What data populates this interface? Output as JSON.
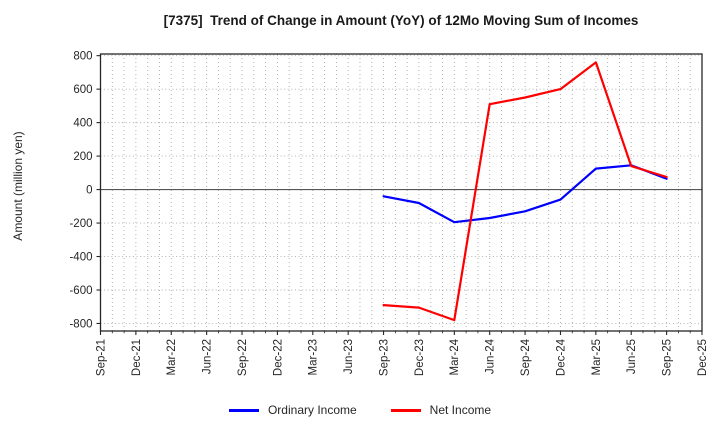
{
  "title": "[7375]  Trend of Change in Amount (YoY) of 12Mo Moving Sum of Incomes",
  "chart_data": {
    "type": "line",
    "title": "[7375]  Trend of Change in Amount (YoY) of 12Mo Moving Sum of Incomes",
    "ylabel": "Amount (million yen)",
    "xlabel": "",
    "x_categories": [
      "Sep-21",
      "Dec-21",
      "Mar-22",
      "Jun-22",
      "Sep-22",
      "Dec-22",
      "Mar-23",
      "Jun-23",
      "Sep-23",
      "Dec-23",
      "Mar-24",
      "Jun-24",
      "Sep-24",
      "Dec-24",
      "Mar-25",
      "Jun-25",
      "Sep-25",
      "Dec-25"
    ],
    "y_ticks": [
      800,
      600,
      400,
      200,
      0,
      -200,
      -400,
      -600,
      -800
    ],
    "ylim": [
      -845,
      810
    ],
    "grid": "dotted gray, vertical lines monthly, horizontal lines every 200, solid line at 0",
    "legend_position": "bottom-center",
    "series": [
      {
        "name": "Ordinary Income",
        "color": "#0000ff",
        "x": [
          "Sep-23",
          "Dec-23",
          "Mar-24",
          "Jun-24",
          "Sep-24",
          "Dec-24",
          "Mar-25",
          "Jun-25",
          "Sep-25"
        ],
        "values": [
          -40,
          -80,
          -195,
          -170,
          -130,
          -60,
          125,
          145,
          65
        ]
      },
      {
        "name": "Net Income",
        "color": "#ff0000",
        "x": [
          "Sep-23",
          "Dec-23",
          "Mar-24",
          "Jun-24",
          "Sep-24",
          "Dec-24",
          "Mar-25",
          "Jun-25",
          "Sep-25"
        ],
        "values": [
          -690,
          -705,
          -780,
          510,
          550,
          600,
          760,
          140,
          75
        ]
      }
    ]
  },
  "colors": {
    "ordinary_income": "#0000ff",
    "net_income": "#ff0000",
    "grid": "#ababab",
    "axis": "#262626",
    "zero_line": "#555555"
  }
}
